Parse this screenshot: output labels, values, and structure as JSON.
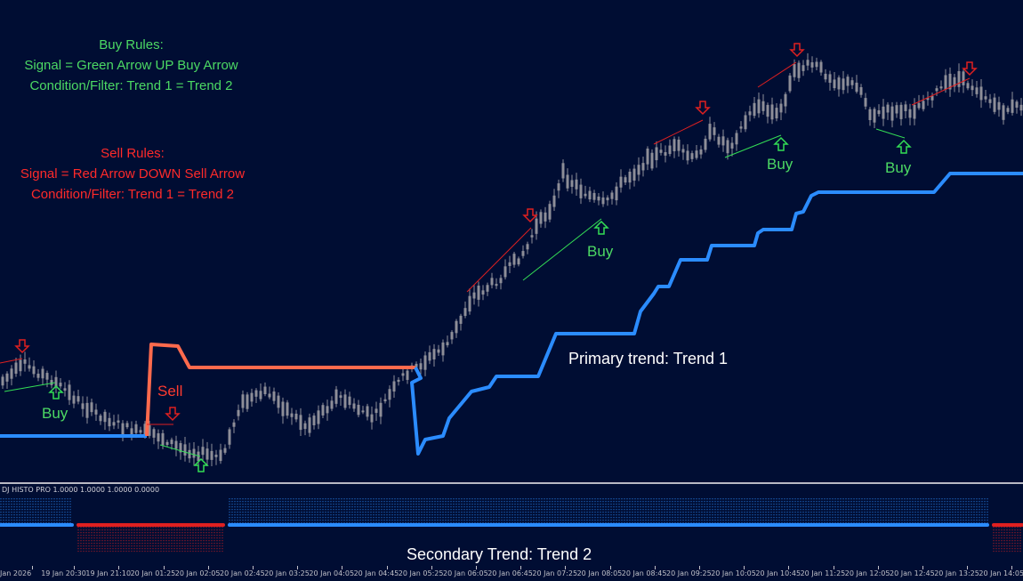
{
  "rules": {
    "buy": {
      "title": "Buy Rules:",
      "signal": "Signal = Green Arrow UP Buy Arrow",
      "condition": "Condition/Filter: Trend 1 = Trend 2"
    },
    "sell": {
      "title": "Sell Rules:",
      "signal": "Signal = Red Arrow DOWN Sell Arrow",
      "condition": "Condition/Filter: Trend 1 = Trend 2"
    }
  },
  "labels": {
    "buy": "Buy",
    "sell": "Sell",
    "primary_trend": "Primary trend: Trend 1",
    "secondary_trend": "Secondary Trend: Trend 2"
  },
  "indicator_title": "DJ HISTO PRO 1.0000 1.0000 1.0000 0.0000",
  "colors": {
    "background": "#000d33",
    "bullish_trend": "#2b8cff",
    "bearish_trend": "#ff6a4d",
    "buy_signal": "#33dd55",
    "sell_signal": "#e02020",
    "candles": "#8e8e98"
  },
  "chart_data": {
    "type": "candlestick",
    "x_ticks": [
      "Jan 2026",
      "19 Jan 20:30",
      "19 Jan 21:10",
      "20 Jan 01:25",
      "20 Jan 02:05",
      "20 Jan 02:45",
      "20 Jan 03:25",
      "20 Jan 04:05",
      "20 Jan 04:45",
      "20 Jan 05:25",
      "20 Jan 06:05",
      "20 Jan 06:45",
      "20 Jan 07:25",
      "20 Jan 08:05",
      "20 Jan 08:45",
      "20 Jan 09:25",
      "20 Jan 10:05",
      "20 Jan 10:45",
      "20 Jan 11:25",
      "20 Jan 12:05",
      "20 Jan 12:45",
      "20 Jan 13:25",
      "20 Jan 14:05",
      "20"
    ],
    "trend1_regime": [
      "bull",
      "bear",
      "bull"
    ],
    "trend2_regime": [
      "bull",
      "bear",
      "bull",
      "bear"
    ],
    "signals": [
      {
        "type": "sell",
        "label": ""
      },
      {
        "type": "buy",
        "label": "Buy"
      },
      {
        "type": "sell",
        "label": "Sell"
      },
      {
        "type": "buy",
        "label": ""
      },
      {
        "type": "sell",
        "label": ""
      },
      {
        "type": "buy",
        "label": "Buy"
      },
      {
        "type": "sell",
        "label": ""
      },
      {
        "type": "buy",
        "label": "Buy"
      },
      {
        "type": "sell",
        "label": ""
      },
      {
        "type": "sell",
        "label": ""
      },
      {
        "type": "buy",
        "label": "Buy"
      },
      {
        "type": "sell",
        "label": ""
      }
    ]
  }
}
